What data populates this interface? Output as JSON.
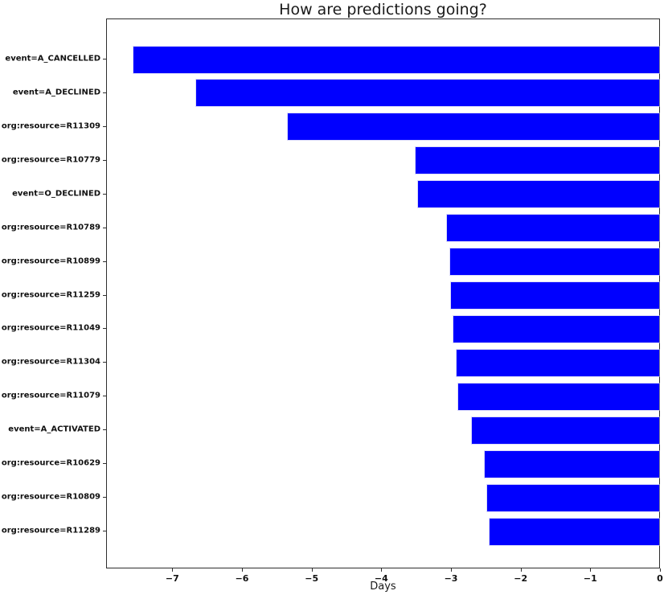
{
  "chart_data": {
    "type": "bar",
    "orientation": "horizontal",
    "title": "How are predictions going?",
    "xlabel": "Days",
    "ylabel": "",
    "categories": [
      "event=A_CANCELLED",
      "event=A_DECLINED",
      "org:resource=R11309",
      "org:resource=R10779",
      "event=O_DECLINED",
      "org:resource=R10789",
      "org:resource=R10899",
      "org:resource=R11259",
      "org:resource=R11049",
      "org:resource=R11304",
      "org:resource=R11079",
      "event=A_ACTIVATED",
      "org:resource=R10629",
      "org:resource=R10809",
      "org:resource=R11289"
    ],
    "values": [
      -7.55,
      -6.65,
      -5.33,
      -3.5,
      -3.46,
      -3.05,
      -3.0,
      -2.99,
      -2.96,
      -2.91,
      -2.89,
      -2.69,
      -2.51,
      -2.47,
      -2.43
    ],
    "xlim": [
      -7.95,
      0
    ],
    "xticks": [
      -7,
      -6,
      -5,
      -4,
      -3,
      -2,
      -1,
      0
    ],
    "xtick_labels": [
      "−7",
      "−6",
      "−5",
      "−4",
      "−3",
      "−2",
      "−1",
      "0"
    ],
    "bar_color": "#0000ff",
    "grid": false,
    "legend": null
  }
}
